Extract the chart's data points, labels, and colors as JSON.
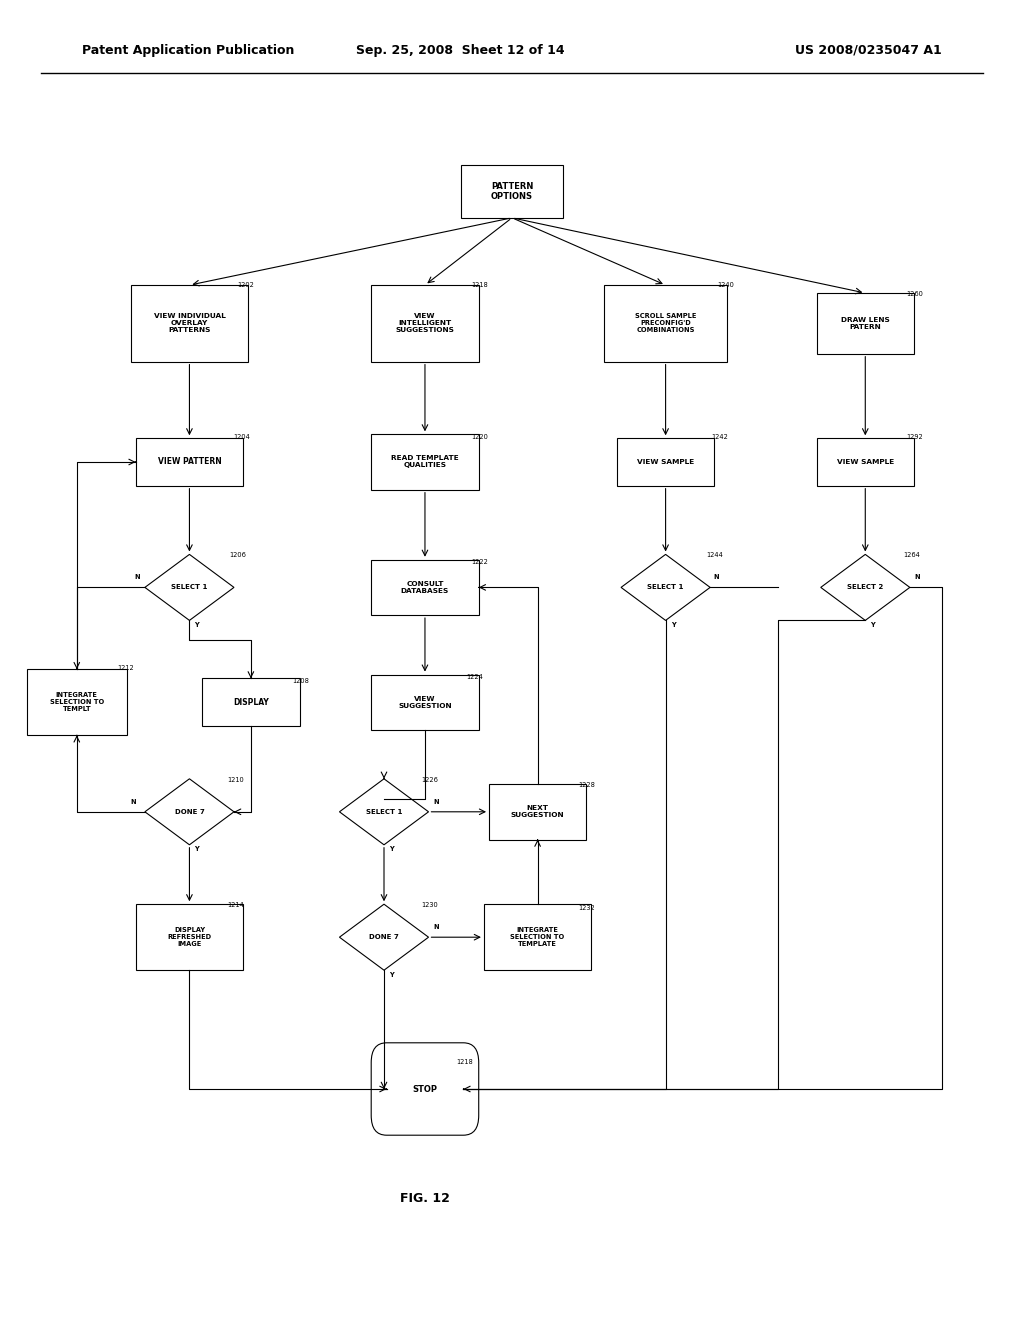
{
  "title_left": "Patent Application Publication",
  "title_center": "Sep. 25, 2008  Sheet 12 of 14",
  "title_right": "US 2008/0235047 A1",
  "fig_label": "FIG. 12",
  "background": "#ffffff"
}
